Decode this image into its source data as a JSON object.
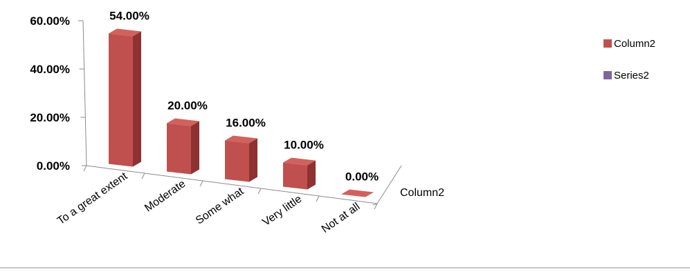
{
  "chart_data": {
    "type": "bar",
    "categories": [
      "To a great extent",
      "Moderate",
      "Some what",
      "Very little",
      "Not at all"
    ],
    "series": [
      {
        "name": "Column2",
        "values": [
          54.0,
          20.0,
          16.0,
          10.0,
          0.0
        ]
      }
    ],
    "data_labels": [
      "54.00%",
      "20.00%",
      "16.00%",
      "10.00%",
      "0.00%"
    ],
    "ylim": [
      0,
      60
    ],
    "yticks": [
      "0.00%",
      "20.00%",
      "40.00%",
      "60.00%"
    ],
    "depth_axis_label": "Column2",
    "legend": {
      "position": "right",
      "entries": [
        "Column2",
        "Series2"
      ]
    },
    "colors": {
      "Column2": "#c0504d",
      "Series2": "#8064a2"
    },
    "style": "3d-column",
    "grid": false
  }
}
